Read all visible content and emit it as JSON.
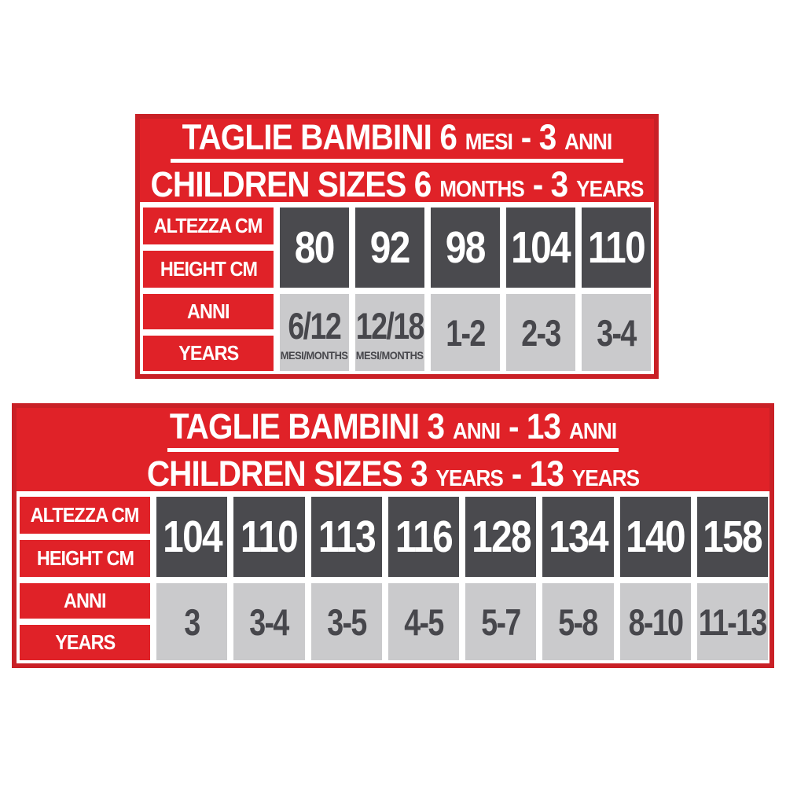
{
  "colors": {
    "red": "#e02228",
    "red_border": "#c92026",
    "dark_cell": "#4a4a4e",
    "light_cell": "#cacacc",
    "dark_text": "#47474c",
    "white_text": "#ffffff"
  },
  "chart_data": [
    {
      "type": "table",
      "title": "TAGLIE BAMBINI 6 MESI - 3 ANNI",
      "subtitle": "CHILDREN SIZES 6 MONTHS - 3 YEARS",
      "title_parts": [
        {
          "text": "TAGLIE BAMBINI 6",
          "size": "lg"
        },
        {
          "text": "MESI",
          "size": "sm"
        },
        {
          "text": "- 3",
          "size": "lg"
        },
        {
          "text": "ANNI",
          "size": "sm"
        }
      ],
      "subtitle_parts": [
        {
          "text": "CHILDREN SIZES 6",
          "size": "lg"
        },
        {
          "text": "MONTHS",
          "size": "sm"
        },
        {
          "text": "- 3",
          "size": "lg"
        },
        {
          "text": "YEARS",
          "size": "sm"
        }
      ],
      "row_labels": {
        "altezza": "ALTEZZA CM",
        "height": "HEIGHT CM",
        "anni": "ANNI",
        "years": "YEARS"
      },
      "columns": [
        {
          "height_cm": "80",
          "age": "6/12",
          "age_unit": "MESI/MONTHS"
        },
        {
          "height_cm": "92",
          "age": "12/18",
          "age_unit": "MESI/MONTHS"
        },
        {
          "height_cm": "98",
          "age": "1-2"
        },
        {
          "height_cm": "104",
          "age": "2-3"
        },
        {
          "height_cm": "110",
          "age": "3-4"
        }
      ]
    },
    {
      "type": "table",
      "title": "TAGLIE BAMBINI 3 ANNI - 13 ANNI",
      "subtitle": "CHILDREN SIZES 3 YEARS - 13 YEARS",
      "title_parts": [
        {
          "text": "TAGLIE BAMBINI 3",
          "size": "lg"
        },
        {
          "text": "ANNI",
          "size": "sm"
        },
        {
          "text": "- 13",
          "size": "lg"
        },
        {
          "text": "ANNI",
          "size": "sm"
        }
      ],
      "subtitle_parts": [
        {
          "text": "CHILDREN SIZES 3",
          "size": "lg"
        },
        {
          "text": "YEARS",
          "size": "sm"
        },
        {
          "text": "- 13",
          "size": "lg"
        },
        {
          "text": "YEARS",
          "size": "sm"
        }
      ],
      "row_labels": {
        "altezza": "ALTEZZA CM",
        "height": "HEIGHT CM",
        "anni": "ANNI",
        "years": "YEARS"
      },
      "columns": [
        {
          "height_cm": "104",
          "age": "3"
        },
        {
          "height_cm": "110",
          "age": "3-4"
        },
        {
          "height_cm": "113",
          "age": "3-5"
        },
        {
          "height_cm": "116",
          "age": "4-5"
        },
        {
          "height_cm": "128",
          "age": "5-7"
        },
        {
          "height_cm": "134",
          "age": "5-8"
        },
        {
          "height_cm": "140",
          "age": "8-10"
        },
        {
          "height_cm": "158",
          "age": "11-13"
        }
      ]
    }
  ]
}
